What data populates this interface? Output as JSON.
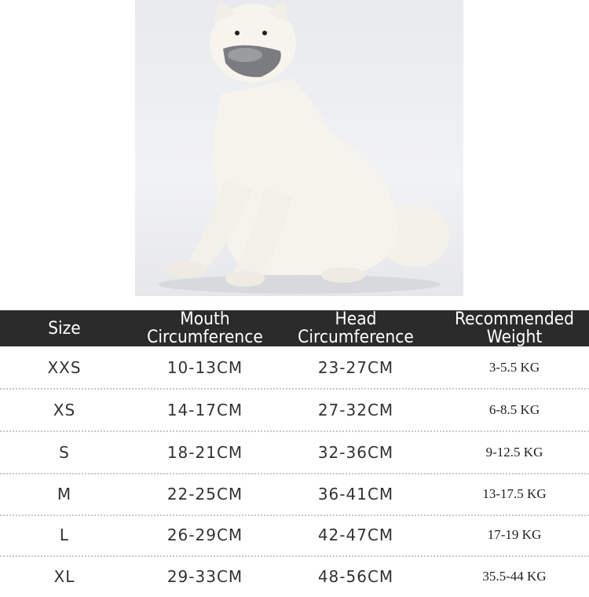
{
  "colors": {
    "header_bg": "#2b2b2b",
    "header_text": "#ffffff",
    "body_text": "#333333",
    "separator": "#c8c8c8"
  },
  "photo": {
    "subject": "white dog wearing gray muzzle"
  },
  "table": {
    "headers": [
      {
        "line1": "Size",
        "line2": ""
      },
      {
        "line1": "Mouth",
        "line2": "Circumference"
      },
      {
        "line1": "Head",
        "line2": "Circumference"
      },
      {
        "line1": "Recommended",
        "line2": "Weight"
      }
    ],
    "rows": [
      {
        "size": "XXS",
        "mouth": "10-13CM",
        "head": "23-27CM",
        "weight": "3-5.5 KG"
      },
      {
        "size": "XS",
        "mouth": "14-17CM",
        "head": "27-32CM",
        "weight": "6-8.5 KG"
      },
      {
        "size": "S",
        "mouth": "18-21CM",
        "head": "32-36CM",
        "weight": "9-12.5 KG"
      },
      {
        "size": "M",
        "mouth": "22-25CM",
        "head": "36-41CM",
        "weight": "13-17.5 KG"
      },
      {
        "size": "L",
        "mouth": "26-29CM",
        "head": "42-47CM",
        "weight": "17-19 KG"
      },
      {
        "size": "XL",
        "mouth": "29-33CM",
        "head": "48-56CM",
        "weight": "35.5-44 KG"
      }
    ]
  }
}
